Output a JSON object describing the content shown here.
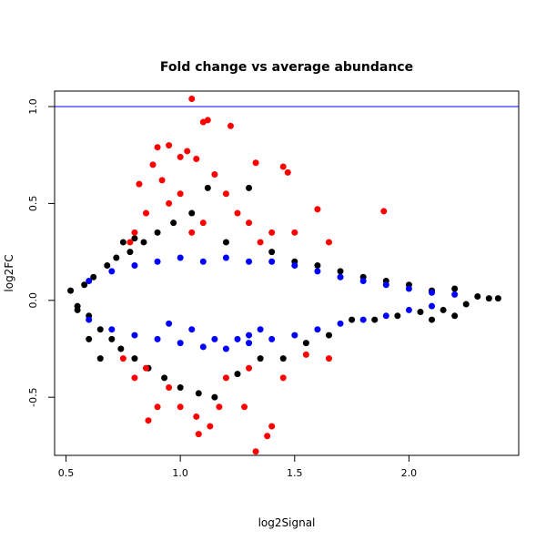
{
  "chart_data": {
    "type": "scatter",
    "title": "Fold change vs average abundance",
    "xlabel": "log2Signal",
    "ylabel": "log2FC",
    "xlim": [
      0.45,
      2.48
    ],
    "ylim": [
      -0.8,
      1.08
    ],
    "x_ticks": [
      "0.5",
      "1.0",
      "1.5",
      "2.0"
    ],
    "y_ticks": [
      "-0.5",
      "0.0",
      "0.5",
      "1.0"
    ],
    "reference_line": {
      "y": 1.0,
      "color": "#0000ff"
    },
    "grid": false,
    "legend": "none",
    "series": [
      {
        "color": "#000000",
        "points": [
          [
            0.52,
            0.05
          ],
          [
            0.55,
            -0.03
          ],
          [
            0.58,
            0.08
          ],
          [
            0.6,
            -0.08
          ],
          [
            0.62,
            0.12
          ],
          [
            0.65,
            -0.15
          ],
          [
            0.68,
            0.18
          ],
          [
            0.7,
            -0.2
          ],
          [
            0.72,
            0.22
          ],
          [
            0.74,
            -0.25
          ],
          [
            0.78,
            0.25
          ],
          [
            0.8,
            -0.3
          ],
          [
            0.84,
            0.3
          ],
          [
            0.86,
            -0.35
          ],
          [
            0.9,
            0.35
          ],
          [
            0.93,
            -0.4
          ],
          [
            0.97,
            0.4
          ],
          [
            1.0,
            -0.45
          ],
          [
            1.05,
            0.45
          ],
          [
            1.08,
            -0.48
          ],
          [
            1.12,
            0.58
          ],
          [
            1.15,
            -0.5
          ],
          [
            1.2,
            0.3
          ],
          [
            1.25,
            -0.38
          ],
          [
            1.3,
            0.58
          ],
          [
            1.35,
            -0.3
          ],
          [
            1.4,
            0.25
          ],
          [
            1.45,
            -0.3
          ],
          [
            1.5,
            0.2
          ],
          [
            1.55,
            -0.22
          ],
          [
            1.6,
            0.18
          ],
          [
            1.65,
            -0.18
          ],
          [
            1.7,
            0.15
          ],
          [
            1.75,
            -0.1
          ],
          [
            1.8,
            0.12
          ],
          [
            1.85,
            -0.1
          ],
          [
            1.9,
            0.1
          ],
          [
            1.95,
            -0.08
          ],
          [
            2.0,
            0.08
          ],
          [
            2.05,
            -0.06
          ],
          [
            2.1,
            0.05
          ],
          [
            2.15,
            -0.05
          ],
          [
            2.2,
            0.06
          ],
          [
            2.25,
            -0.02
          ],
          [
            2.3,
            0.02
          ],
          [
            2.35,
            0.01
          ],
          [
            2.39,
            0.01
          ],
          [
            2.1,
            -0.1
          ],
          [
            2.2,
            -0.08
          ],
          [
            0.6,
            -0.2
          ],
          [
            0.65,
            -0.3
          ],
          [
            0.55,
            -0.05
          ],
          [
            0.75,
            0.3
          ],
          [
            0.8,
            0.32
          ]
        ]
      },
      {
        "color": "#ff0000",
        "points": [
          [
            1.05,
            1.04
          ],
          [
            1.12,
            0.93
          ],
          [
            1.1,
            0.92
          ],
          [
            1.22,
            0.9
          ],
          [
            0.95,
            0.8
          ],
          [
            0.9,
            0.79
          ],
          [
            1.03,
            0.77
          ],
          [
            1.0,
            0.74
          ],
          [
            1.07,
            0.73
          ],
          [
            0.88,
            0.7
          ],
          [
            1.33,
            0.71
          ],
          [
            1.45,
            0.69
          ],
          [
            1.47,
            0.66
          ],
          [
            0.92,
            0.62
          ],
          [
            0.82,
            0.6
          ],
          [
            1.15,
            0.65
          ],
          [
            1.2,
            0.55
          ],
          [
            1.0,
            0.55
          ],
          [
            0.95,
            0.5
          ],
          [
            1.25,
            0.45
          ],
          [
            0.85,
            0.45
          ],
          [
            1.1,
            0.4
          ],
          [
            1.3,
            0.4
          ],
          [
            1.4,
            0.35
          ],
          [
            1.5,
            0.35
          ],
          [
            1.6,
            0.47
          ],
          [
            1.89,
            0.46
          ],
          [
            0.8,
            0.35
          ],
          [
            1.05,
            0.35
          ],
          [
            1.35,
            0.3
          ],
          [
            1.65,
            0.3
          ],
          [
            0.78,
            0.3
          ],
          [
            0.85,
            -0.35
          ],
          [
            0.95,
            -0.45
          ],
          [
            1.0,
            -0.55
          ],
          [
            1.07,
            -0.6
          ],
          [
            1.08,
            -0.69
          ],
          [
            1.13,
            -0.65
          ],
          [
            1.17,
            -0.55
          ],
          [
            1.28,
            -0.55
          ],
          [
            1.38,
            -0.7
          ],
          [
            1.4,
            -0.65
          ],
          [
            1.33,
            -0.78
          ],
          [
            0.86,
            -0.62
          ],
          [
            0.9,
            -0.55
          ],
          [
            1.2,
            -0.4
          ],
          [
            1.3,
            -0.35
          ],
          [
            1.45,
            -0.4
          ],
          [
            1.55,
            -0.28
          ],
          [
            1.65,
            -0.3
          ],
          [
            0.75,
            -0.3
          ],
          [
            0.8,
            -0.4
          ]
        ]
      },
      {
        "color": "#0000ff",
        "points": [
          [
            0.6,
            0.1
          ],
          [
            0.7,
            0.15
          ],
          [
            0.8,
            0.18
          ],
          [
            0.9,
            0.2
          ],
          [
            1.0,
            0.22
          ],
          [
            1.1,
            0.2
          ],
          [
            1.2,
            0.22
          ],
          [
            1.3,
            0.2
          ],
          [
            1.4,
            0.2
          ],
          [
            1.5,
            0.18
          ],
          [
            1.6,
            0.15
          ],
          [
            1.7,
            0.12
          ],
          [
            1.8,
            0.1
          ],
          [
            1.9,
            0.08
          ],
          [
            2.0,
            0.06
          ],
          [
            2.1,
            0.04
          ],
          [
            2.2,
            0.03
          ],
          [
            0.6,
            -0.1
          ],
          [
            0.7,
            -0.15
          ],
          [
            0.8,
            -0.18
          ],
          [
            0.9,
            -0.2
          ],
          [
            1.0,
            -0.22
          ],
          [
            1.1,
            -0.24
          ],
          [
            1.2,
            -0.25
          ],
          [
            1.3,
            -0.22
          ],
          [
            1.4,
            -0.2
          ],
          [
            1.5,
            -0.18
          ],
          [
            1.6,
            -0.15
          ],
          [
            1.7,
            -0.12
          ],
          [
            1.8,
            -0.1
          ],
          [
            1.9,
            -0.08
          ],
          [
            2.0,
            -0.05
          ],
          [
            2.1,
            -0.03
          ],
          [
            1.25,
            -0.2
          ],
          [
            1.3,
            -0.18
          ],
          [
            1.35,
            -0.15
          ],
          [
            1.15,
            -0.2
          ],
          [
            1.05,
            -0.15
          ],
          [
            0.95,
            -0.12
          ]
        ]
      }
    ]
  }
}
